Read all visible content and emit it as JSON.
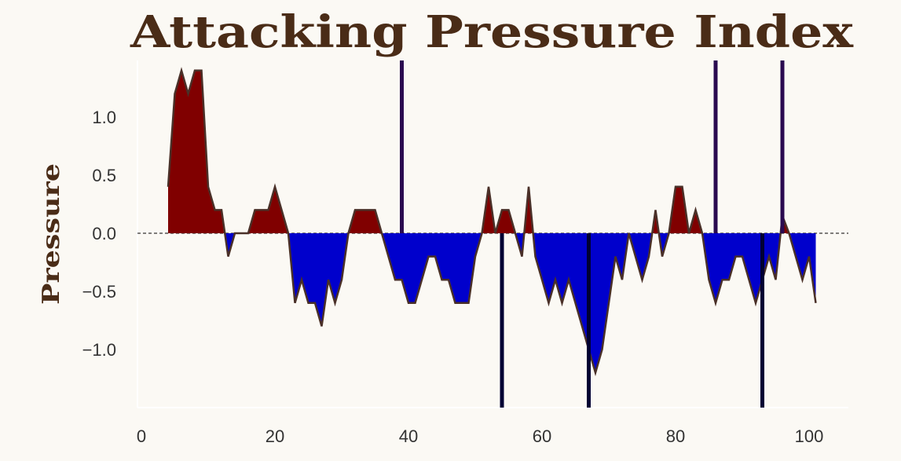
{
  "chart_data": {
    "type": "area",
    "title": "Attacking Pressure Index",
    "xlabel": "",
    "ylabel": "Pressure",
    "xlim": [
      -1,
      107
    ],
    "ylim": [
      -1.5,
      1.5
    ],
    "xticks": [
      0,
      20,
      40,
      60,
      80,
      100
    ],
    "yticks": [
      -1.0,
      -0.5,
      0.0,
      0.5,
      1.0
    ],
    "ytick_labels": [
      "−1.0",
      "−0.5",
      "0.0",
      "0.5",
      "1.0"
    ],
    "grid": false,
    "x_start": 4,
    "values": [
      0.4,
      1.2,
      1.4,
      1.2,
      1.4,
      1.4,
      0.4,
      0.2,
      0.2,
      -0.2,
      0,
      0,
      0,
      0.2,
      0.2,
      0.2,
      0.4,
      0.2,
      0,
      -0.6,
      -0.4,
      -0.6,
      -0.6,
      -0.8,
      -0.4,
      -0.6,
      -0.4,
      0,
      0.2,
      0.2,
      0.2,
      0.2,
      0,
      -0.2,
      -0.4,
      -0.4,
      -0.6,
      -0.6,
      -0.4,
      -0.2,
      -0.2,
      -0.4,
      -0.4,
      -0.6,
      -0.6,
      -0.6,
      -0.2,
      0,
      0.4,
      0,
      0.2,
      0.2,
      0,
      -0.2,
      0.4,
      -0.2,
      -0.4,
      -0.6,
      -0.4,
      -0.6,
      -0.4,
      -0.6,
      -0.8,
      -1.0,
      -1.2,
      -1.0,
      -0.6,
      -0.2,
      -0.4,
      0,
      -0.2,
      -0.4,
      -0.2,
      0.2,
      -0.2,
      0,
      0.4,
      0.4,
      0,
      0.2,
      0,
      -0.4,
      -0.6,
      -0.4,
      -0.4,
      -0.2,
      -0.2,
      -0.4,
      -0.6,
      -0.4,
      -0.2,
      -0.4,
      0.15,
      0,
      -0.2,
      -0.4,
      -0.2,
      -0.6
    ],
    "events_up": [
      39,
      86,
      96
    ],
    "events_down": [
      54,
      67,
      93
    ],
    "colors": {
      "positive": "#800000",
      "negative": "#0000cc",
      "outline": "#4a3028",
      "event_up": "#2a0a50",
      "event_down": "#000033",
      "title": "#4a2c17",
      "background": "#fbf9f4"
    }
  }
}
